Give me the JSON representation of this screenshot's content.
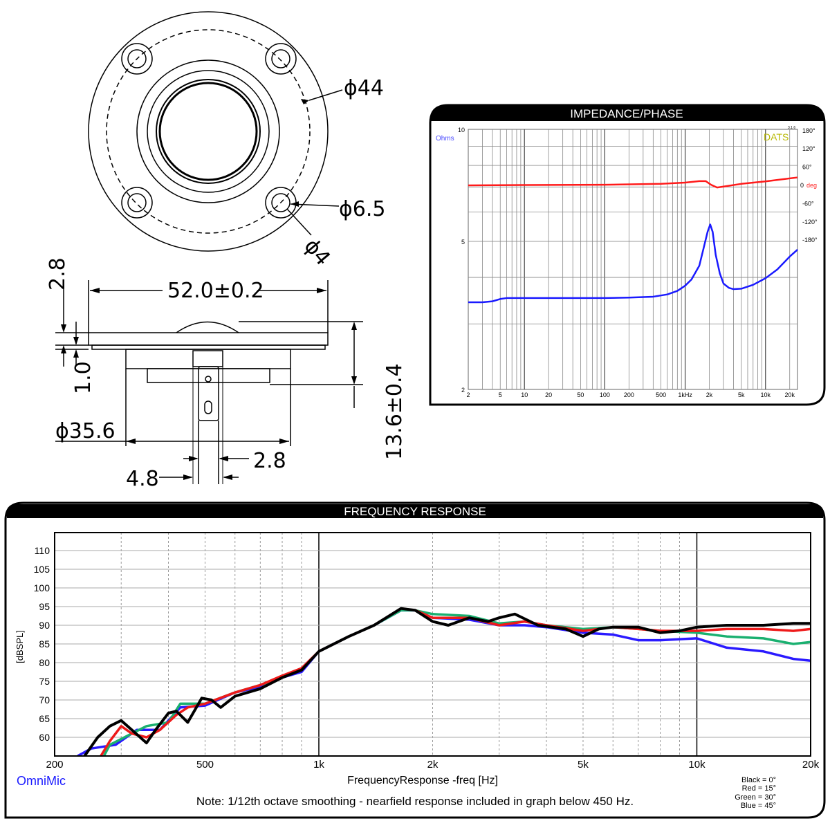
{
  "drawing": {
    "labels": {
      "d44": "ϕ44",
      "d65": "ϕ6.5",
      "d4": "ϕ4",
      "width": "52.0±0.2",
      "h28": "2.8",
      "h10": "1.0",
      "height": "13.6±0.4",
      "d356": "ϕ35.6",
      "w28": "2.8",
      "w48": "4.8"
    }
  },
  "chart_data": [
    {
      "type": "line",
      "title": "IMPEDANCE/PHASE",
      "ylabel": "Ohms",
      "y2label": "deg",
      "brand": "DATS",
      "version": "3.1.6",
      "xscale": "log",
      "xlim": [
        2,
        25000
      ],
      "yscale": "log",
      "ylim": [
        2,
        10
      ],
      "y2lim": [
        -180,
        180
      ],
      "grid": true,
      "xticks": [
        {
          "v": 2,
          "l": "2"
        },
        {
          "v": 5,
          "l": "5"
        },
        {
          "v": 10,
          "l": "10"
        },
        {
          "v": 20,
          "l": "20"
        },
        {
          "v": 50,
          "l": "50"
        },
        {
          "v": 100,
          "l": "100"
        },
        {
          "v": 200,
          "l": "200"
        },
        {
          "v": 500,
          "l": "500"
        },
        {
          "v": 1000,
          "l": "1kHz"
        },
        {
          "v": 2000,
          "l": "2k"
        },
        {
          "v": 5000,
          "l": "5k"
        },
        {
          "v": 10000,
          "l": "10k"
        },
        {
          "v": 20000,
          "l": "20k"
        }
      ],
      "yticks": [
        {
          "v": 10,
          "l": "10"
        },
        {
          "v": 5,
          "l": "5"
        },
        {
          "v": 2,
          "l": "2"
        }
      ],
      "y2ticks": [
        {
          "v": 180,
          "l": "180°"
        },
        {
          "v": 120,
          "l": "120°"
        },
        {
          "v": 60,
          "l": "60°"
        },
        {
          "v": 0,
          "l": "0"
        },
        {
          "v": -60,
          "l": "-60°"
        },
        {
          "v": -120,
          "l": "-120°"
        },
        {
          "v": -180,
          "l": "-180°"
        }
      ],
      "series": [
        {
          "key": "impedance",
          "color": "#1a1aff",
          "x": [
            2,
            3,
            4,
            5,
            6,
            10,
            20,
            50,
            100,
            200,
            400,
            600,
            800,
            1000,
            1200,
            1500,
            1700,
            1900,
            2050,
            2200,
            2400,
            2700,
            3000,
            3500,
            4000,
            5000,
            7000,
            10000,
            14000,
            20000,
            25000
          ],
          "y": [
            3.43,
            3.43,
            3.45,
            3.5,
            3.52,
            3.52,
            3.52,
            3.52,
            3.52,
            3.53,
            3.55,
            3.6,
            3.68,
            3.8,
            3.95,
            4.3,
            4.8,
            5.3,
            5.55,
            5.3,
            4.6,
            4.1,
            3.85,
            3.75,
            3.72,
            3.73,
            3.82,
            3.98,
            4.2,
            4.55,
            4.75
          ]
        },
        {
          "key": "phase",
          "color": "#ff1a1a",
          "x": [
            2,
            10,
            100,
            500,
            1000,
            1500,
            1800,
            2100,
            2500,
            3000,
            5000,
            10000,
            25000
          ],
          "y": [
            0,
            1,
            2,
            5,
            9,
            14,
            14,
            2,
            -7,
            -4,
            5,
            13,
            26
          ]
        }
      ]
    },
    {
      "type": "line",
      "title": "FREQUENCY RESPONSE",
      "xlabel": "FrequencyResponse -freq [Hz]",
      "ylabel": "[dBSPL]",
      "brand": "OmniMic",
      "note": "Note: 1/12th octave smoothing - nearfield response included in graph below 450 Hz.",
      "xscale": "log",
      "xlim": [
        200,
        20000
      ],
      "ylim": [
        55,
        115
      ],
      "grid": true,
      "xticks": [
        {
          "v": 200,
          "l": "200"
        },
        {
          "v": 500,
          "l": "500"
        },
        {
          "v": 1000,
          "l": "1k"
        },
        {
          "v": 2000,
          "l": "2k"
        },
        {
          "v": 5000,
          "l": "5k"
        },
        {
          "v": 10000,
          "l": "10k"
        },
        {
          "v": 20000,
          "l": "20k"
        }
      ],
      "yticks": [
        60,
        65,
        70,
        75,
        80,
        85,
        90,
        95,
        100,
        105,
        110
      ],
      "legend": [
        "Black = 0°",
        "Red = 15°",
        "Green = 30°",
        "Blue = 45°"
      ],
      "legend_position": "bottom-right",
      "series": [
        {
          "name": "Blue = 45°",
          "color": "#2a1aff",
          "x": [
            230,
            250,
            290,
            330,
            380,
            430,
            500,
            600,
            700,
            800,
            900,
            1000,
            1200,
            1400,
            1650,
            1800,
            2000,
            2500,
            3000,
            3500,
            4000,
            5000,
            6000,
            7000,
            8000,
            10000,
            12000,
            15000,
            18000,
            20000
          ],
          "y": [
            55,
            57,
            58,
            62,
            62,
            68,
            68.5,
            72,
            73.5,
            76,
            77.5,
            83,
            87,
            90,
            94,
            94,
            92,
            91.5,
            90,
            90,
            89.5,
            88,
            87.5,
            86,
            86,
            86.5,
            84,
            83,
            81,
            80.5
          ]
        },
        {
          "name": "Green = 30°",
          "color": "#1ab070",
          "x": [
            270,
            280,
            320,
            350,
            400,
            430,
            500,
            600,
            700,
            800,
            900,
            1000,
            1200,
            1400,
            1650,
            1800,
            2000,
            2500,
            3000,
            3500,
            4000,
            5000,
            6000,
            7000,
            8000,
            10000,
            12000,
            15000,
            18000,
            20000
          ],
          "y": [
            55,
            58,
            61,
            63,
            64,
            69,
            69,
            72,
            74,
            76,
            78,
            83,
            87,
            90,
            94,
            94,
            93,
            92.5,
            90.5,
            91,
            90,
            89,
            89.5,
            89,
            88.5,
            88,
            87,
            86.5,
            85,
            85.5
          ]
        },
        {
          "name": "Red = 15°",
          "color": "#ee1a1a",
          "x": [
            265,
            280,
            300,
            320,
            350,
            380,
            420,
            450,
            500,
            600,
            700,
            800,
            900,
            1000,
            1200,
            1400,
            1650,
            1800,
            2000,
            2500,
            3000,
            3500,
            4000,
            5000,
            6000,
            7000,
            8000,
            10000,
            12000,
            15000,
            18000,
            20000
          ],
          "y": [
            55,
            59,
            63,
            61,
            60,
            62,
            66,
            68,
            69,
            72,
            74,
            76.5,
            78.5,
            83,
            87,
            90,
            94.5,
            94,
            92,
            92,
            90,
            91,
            90,
            88.5,
            89.5,
            89,
            88.5,
            88.5,
            89,
            89,
            88.5,
            89
          ]
        },
        {
          "name": "Black = 0°",
          "color": "#000000",
          "x": [
            240,
            260,
            280,
            300,
            320,
            350,
            370,
            400,
            420,
            450,
            490,
            520,
            550,
            600,
            700,
            800,
            900,
            1000,
            1200,
            1400,
            1650,
            1800,
            2000,
            2200,
            2500,
            2800,
            3000,
            3300,
            3800,
            4500,
            5000,
            5500,
            6000,
            7000,
            8000,
            9000,
            10000,
            12000,
            15000,
            18000,
            20000
          ],
          "y": [
            55,
            60,
            63,
            64.5,
            62,
            58.5,
            62,
            66.5,
            67,
            64,
            70.5,
            70,
            68,
            71,
            73,
            76,
            78,
            83,
            87,
            90,
            94.5,
            94,
            91,
            90,
            92,
            91,
            92,
            93,
            90,
            89,
            87,
            89,
            89.5,
            89.5,
            88,
            88.5,
            89.5,
            90,
            90,
            90.5,
            90.5
          ]
        }
      ]
    }
  ]
}
